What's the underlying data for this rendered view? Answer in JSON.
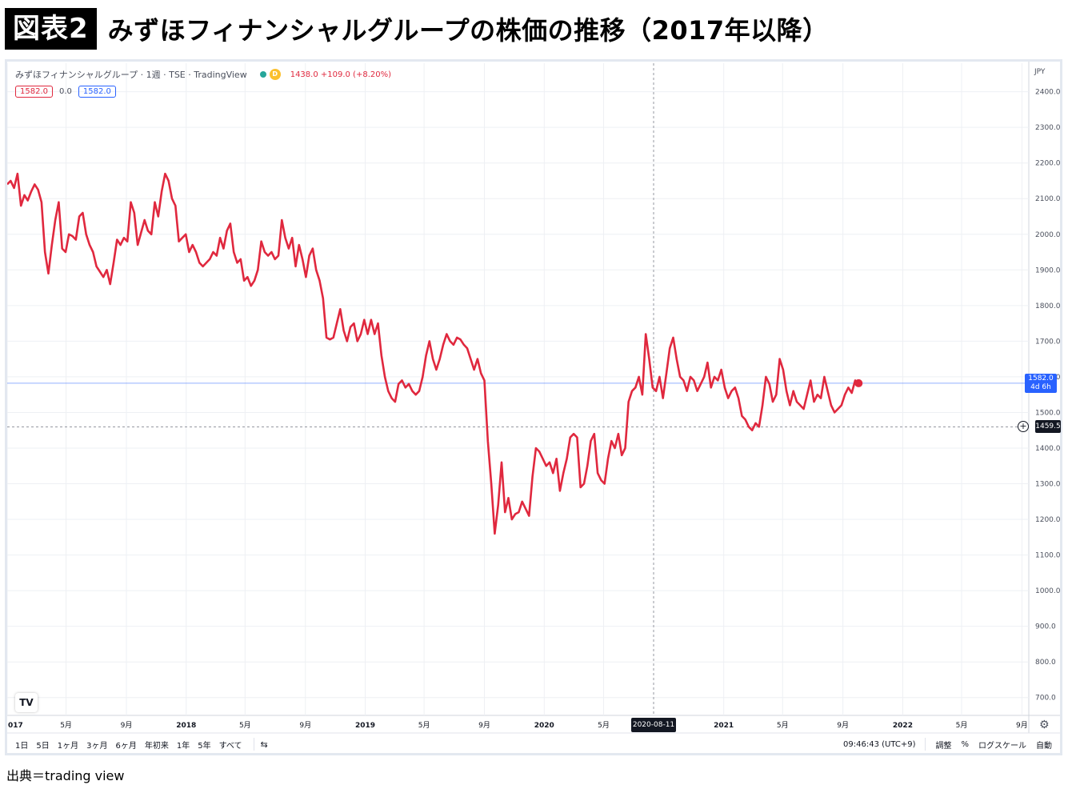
{
  "figure": {
    "badge": "図表2",
    "title": "みずほフィナンシャルグループの株価の推移（2017年以降）",
    "source": "出典＝trading view"
  },
  "legend": {
    "symbol": "みずほフィナンシャルグループ · 1週 · TSE · TradingView",
    "badge": "D",
    "change": "1438.0 +109.0 (+8.20%)"
  },
  "indicator": {
    "left": "1582.0",
    "mid": "0.0",
    "right": "1582.0"
  },
  "tags": {
    "last_price": "1582.0",
    "countdown": "4d 6h",
    "crosshair_price": "1459.5",
    "crosshair_date": "2020-08-11",
    "currency": "JPY"
  },
  "toolbar": {
    "timeframes": [
      "1日",
      "5日",
      "1ヶ月",
      "3ヶ月",
      "6ヶ月",
      "年初来",
      "1年",
      "5年",
      "すべて"
    ],
    "compare_icon": "⇆",
    "time": "09:46:43 (UTC+9)",
    "adjust": "調整",
    "percent": "%",
    "log_scale": "ログスケール",
    "auto": "自動",
    "logo": "TV",
    "settings_icon": "⚙"
  },
  "colors": {
    "line": "#e0283e",
    "price_tag": "#2962ff",
    "dark": "#131722",
    "grid": "#eef0f4"
  },
  "chart_data": {
    "type": "line",
    "title": "みずほフィナンシャルグループの株価の推移（2017年以降）",
    "xlabel": "",
    "ylabel": "",
    "unit": "JPY",
    "ylim": [
      650,
      2480
    ],
    "xlim": [
      "2017-01-01",
      "2022-09-15"
    ],
    "grid": true,
    "y_ticks": [
      700,
      800,
      900,
      1000,
      1100,
      1200,
      1300,
      1400,
      1500,
      1600,
      1700,
      1800,
      1900,
      2000,
      2100,
      2200,
      2300,
      2400
    ],
    "x_ticks": [
      {
        "date": "2017-01-01",
        "label": "017"
      },
      {
        "date": "2017-05-01",
        "label": "5月"
      },
      {
        "date": "2017-09-01",
        "label": "9月"
      },
      {
        "date": "2018-01-01",
        "label": "2018"
      },
      {
        "date": "2018-05-01",
        "label": "5月"
      },
      {
        "date": "2018-09-01",
        "label": "9月"
      },
      {
        "date": "2019-01-01",
        "label": "2019"
      },
      {
        "date": "2019-05-01",
        "label": "5月"
      },
      {
        "date": "2019-09-01",
        "label": "9月"
      },
      {
        "date": "2020-01-01",
        "label": "2020"
      },
      {
        "date": "2020-05-01",
        "label": "5月"
      },
      {
        "date": "2021-01-01",
        "label": "2021"
      },
      {
        "date": "2021-05-01",
        "label": "5月"
      },
      {
        "date": "2021-09-01",
        "label": "9月"
      },
      {
        "date": "2022-01-01",
        "label": "2022"
      },
      {
        "date": "2022-05-01",
        "label": "5月"
      },
      {
        "date": "2022-09-01",
        "label": "9月"
      }
    ],
    "crosshair": {
      "date": "2020-08-11",
      "price": 1459.5
    },
    "last_price": 1582.0,
    "series": [
      {
        "points": [
          [
            "2017-01-01",
            2140
          ],
          [
            "2017-01-08",
            2150
          ],
          [
            "2017-01-15",
            2130
          ],
          [
            "2017-01-22",
            2170
          ],
          [
            "2017-01-29",
            2080
          ],
          [
            "2017-02-05",
            2110
          ],
          [
            "2017-02-12",
            2095
          ],
          [
            "2017-02-19",
            2120
          ],
          [
            "2017-02-26",
            2140
          ],
          [
            "2017-03-05",
            2125
          ],
          [
            "2017-03-12",
            2090
          ],
          [
            "2017-03-19",
            1950
          ],
          [
            "2017-03-26",
            1890
          ],
          [
            "2017-04-02",
            1970
          ],
          [
            "2017-04-09",
            2040
          ],
          [
            "2017-04-16",
            2090
          ],
          [
            "2017-04-23",
            1960
          ],
          [
            "2017-04-30",
            1950
          ],
          [
            "2017-05-07",
            2000
          ],
          [
            "2017-05-14",
            1995
          ],
          [
            "2017-05-21",
            1985
          ],
          [
            "2017-05-28",
            2050
          ],
          [
            "2017-06-04",
            2060
          ],
          [
            "2017-06-11",
            2000
          ],
          [
            "2017-06-18",
            1970
          ],
          [
            "2017-06-25",
            1950
          ],
          [
            "2017-07-02",
            1910
          ],
          [
            "2017-07-09",
            1895
          ],
          [
            "2017-07-16",
            1880
          ],
          [
            "2017-07-23",
            1900
          ],
          [
            "2017-07-30",
            1860
          ],
          [
            "2017-08-06",
            1920
          ],
          [
            "2017-08-13",
            1985
          ],
          [
            "2017-08-20",
            1970
          ],
          [
            "2017-08-27",
            1990
          ],
          [
            "2017-09-03",
            1980
          ],
          [
            "2017-09-10",
            2090
          ],
          [
            "2017-09-17",
            2060
          ],
          [
            "2017-09-24",
            1970
          ],
          [
            "2017-10-01",
            2005
          ],
          [
            "2017-10-08",
            2040
          ],
          [
            "2017-10-15",
            2010
          ],
          [
            "2017-10-22",
            2000
          ],
          [
            "2017-10-29",
            2090
          ],
          [
            "2017-11-05",
            2050
          ],
          [
            "2017-11-12",
            2120
          ],
          [
            "2017-11-19",
            2170
          ],
          [
            "2017-11-26",
            2150
          ],
          [
            "2017-12-03",
            2100
          ],
          [
            "2017-12-10",
            2080
          ],
          [
            "2017-12-17",
            1980
          ],
          [
            "2017-12-24",
            1990
          ],
          [
            "2017-12-31",
            2000
          ],
          [
            "2018-01-07",
            1950
          ],
          [
            "2018-01-14",
            1970
          ],
          [
            "2018-01-21",
            1950
          ],
          [
            "2018-01-28",
            1920
          ],
          [
            "2018-02-04",
            1910
          ],
          [
            "2018-02-11",
            1920
          ],
          [
            "2018-02-18",
            1930
          ],
          [
            "2018-02-25",
            1950
          ],
          [
            "2018-03-04",
            1940
          ],
          [
            "2018-03-11",
            1990
          ],
          [
            "2018-03-18",
            1960
          ],
          [
            "2018-03-25",
            2010
          ],
          [
            "2018-04-01",
            2030
          ],
          [
            "2018-04-08",
            1950
          ],
          [
            "2018-04-15",
            1920
          ],
          [
            "2018-04-22",
            1930
          ],
          [
            "2018-04-29",
            1870
          ],
          [
            "2018-05-06",
            1880
          ],
          [
            "2018-05-13",
            1855
          ],
          [
            "2018-05-20",
            1870
          ],
          [
            "2018-05-27",
            1900
          ],
          [
            "2018-06-03",
            1980
          ],
          [
            "2018-06-10",
            1950
          ],
          [
            "2018-06-17",
            1940
          ],
          [
            "2018-06-24",
            1950
          ],
          [
            "2018-07-01",
            1930
          ],
          [
            "2018-07-08",
            1940
          ],
          [
            "2018-07-15",
            2040
          ],
          [
            "2018-07-22",
            1990
          ],
          [
            "2018-07-29",
            1960
          ],
          [
            "2018-08-05",
            1990
          ],
          [
            "2018-08-12",
            1910
          ],
          [
            "2018-08-19",
            1970
          ],
          [
            "2018-08-26",
            1930
          ],
          [
            "2018-09-02",
            1880
          ],
          [
            "2018-09-09",
            1940
          ],
          [
            "2018-09-16",
            1960
          ],
          [
            "2018-09-23",
            1900
          ],
          [
            "2018-09-30",
            1870
          ],
          [
            "2018-10-07",
            1820
          ],
          [
            "2018-10-14",
            1710
          ],
          [
            "2018-10-21",
            1705
          ],
          [
            "2018-10-28",
            1710
          ],
          [
            "2018-11-04",
            1750
          ],
          [
            "2018-11-11",
            1790
          ],
          [
            "2018-11-18",
            1730
          ],
          [
            "2018-11-25",
            1700
          ],
          [
            "2018-12-02",
            1740
          ],
          [
            "2018-12-09",
            1750
          ],
          [
            "2018-12-16",
            1700
          ],
          [
            "2018-12-23",
            1720
          ],
          [
            "2018-12-30",
            1760
          ],
          [
            "2019-01-06",
            1720
          ],
          [
            "2019-01-13",
            1760
          ],
          [
            "2019-01-20",
            1720
          ],
          [
            "2019-01-27",
            1750
          ],
          [
            "2019-02-03",
            1660
          ],
          [
            "2019-02-10",
            1600
          ],
          [
            "2019-02-17",
            1560
          ],
          [
            "2019-02-24",
            1540
          ],
          [
            "2019-03-03",
            1530
          ],
          [
            "2019-03-10",
            1580
          ],
          [
            "2019-03-17",
            1590
          ],
          [
            "2019-03-24",
            1570
          ],
          [
            "2019-03-31",
            1580
          ],
          [
            "2019-04-07",
            1560
          ],
          [
            "2019-04-14",
            1550
          ],
          [
            "2019-04-21",
            1560
          ],
          [
            "2019-04-28",
            1600
          ],
          [
            "2019-05-05",
            1660
          ],
          [
            "2019-05-12",
            1700
          ],
          [
            "2019-05-19",
            1650
          ],
          [
            "2019-05-26",
            1620
          ],
          [
            "2019-06-02",
            1650
          ],
          [
            "2019-06-09",
            1690
          ],
          [
            "2019-06-16",
            1720
          ],
          [
            "2019-06-23",
            1700
          ],
          [
            "2019-06-30",
            1690
          ],
          [
            "2019-07-07",
            1710
          ],
          [
            "2019-07-14",
            1705
          ],
          [
            "2019-07-21",
            1690
          ],
          [
            "2019-07-28",
            1680
          ],
          [
            "2019-08-04",
            1650
          ],
          [
            "2019-08-11",
            1620
          ],
          [
            "2019-08-18",
            1650
          ],
          [
            "2019-08-25",
            1610
          ],
          [
            "2019-09-01",
            1590
          ],
          [
            "2019-09-08",
            1420
          ],
          [
            "2019-09-15",
            1300
          ],
          [
            "2019-09-22",
            1160
          ],
          [
            "2019-09-29",
            1240
          ],
          [
            "2019-10-06",
            1360
          ],
          [
            "2019-10-13",
            1220
          ],
          [
            "2019-10-20",
            1260
          ],
          [
            "2019-10-27",
            1200
          ],
          [
            "2019-11-03",
            1215
          ],
          [
            "2019-11-10",
            1220
          ],
          [
            "2019-11-17",
            1250
          ],
          [
            "2019-11-24",
            1230
          ],
          [
            "2019-12-01",
            1210
          ],
          [
            "2019-12-08",
            1320
          ],
          [
            "2019-12-15",
            1400
          ],
          [
            "2019-12-22",
            1390
          ],
          [
            "2019-12-29",
            1370
          ],
          [
            "2020-01-05",
            1350
          ],
          [
            "2020-01-12",
            1360
          ],
          [
            "2020-01-19",
            1330
          ],
          [
            "2020-01-26",
            1370
          ],
          [
            "2020-02-02",
            1280
          ],
          [
            "2020-02-09",
            1330
          ],
          [
            "2020-02-16",
            1370
          ],
          [
            "2020-02-23",
            1430
          ],
          [
            "2020-03-01",
            1440
          ],
          [
            "2020-03-08",
            1430
          ],
          [
            "2020-03-15",
            1290
          ],
          [
            "2020-03-22",
            1300
          ],
          [
            "2020-03-29",
            1350
          ],
          [
            "2020-04-05",
            1420
          ],
          [
            "2020-04-12",
            1440
          ],
          [
            "2020-04-19",
            1330
          ],
          [
            "2020-04-26",
            1310
          ],
          [
            "2020-05-03",
            1300
          ],
          [
            "2020-05-10",
            1370
          ],
          [
            "2020-05-17",
            1420
          ],
          [
            "2020-05-24",
            1400
          ],
          [
            "2020-05-31",
            1440
          ],
          [
            "2020-06-07",
            1380
          ],
          [
            "2020-06-14",
            1400
          ],
          [
            "2020-06-21",
            1530
          ],
          [
            "2020-06-28",
            1560
          ],
          [
            "2020-07-05",
            1570
          ],
          [
            "2020-07-12",
            1600
          ],
          [
            "2020-07-19",
            1550
          ],
          [
            "2020-07-26",
            1720
          ],
          [
            "2020-08-02",
            1650
          ],
          [
            "2020-08-09",
            1570
          ],
          [
            "2020-08-16",
            1560
          ],
          [
            "2020-08-23",
            1600
          ],
          [
            "2020-08-30",
            1540
          ],
          [
            "2020-09-06",
            1610
          ],
          [
            "2020-09-13",
            1680
          ],
          [
            "2020-09-20",
            1710
          ],
          [
            "2020-09-27",
            1650
          ],
          [
            "2020-10-04",
            1600
          ],
          [
            "2020-10-11",
            1590
          ],
          [
            "2020-10-18",
            1560
          ],
          [
            "2020-10-25",
            1600
          ],
          [
            "2020-11-01",
            1590
          ],
          [
            "2020-11-08",
            1560
          ],
          [
            "2020-11-15",
            1580
          ],
          [
            "2020-11-22",
            1600
          ],
          [
            "2020-11-29",
            1640
          ],
          [
            "2020-12-06",
            1570
          ],
          [
            "2020-12-13",
            1600
          ],
          [
            "2020-12-20",
            1590
          ],
          [
            "2020-12-27",
            1620
          ],
          [
            "2021-01-03",
            1570
          ],
          [
            "2021-01-10",
            1540
          ],
          [
            "2021-01-17",
            1560
          ],
          [
            "2021-01-24",
            1570
          ],
          [
            "2021-01-31",
            1540
          ],
          [
            "2021-02-07",
            1490
          ],
          [
            "2021-02-14",
            1480
          ],
          [
            "2021-02-21",
            1460
          ],
          [
            "2021-02-28",
            1450
          ],
          [
            "2021-03-07",
            1470
          ],
          [
            "2021-03-14",
            1460
          ],
          [
            "2021-03-21",
            1520
          ],
          [
            "2021-03-28",
            1600
          ],
          [
            "2021-04-04",
            1580
          ],
          [
            "2021-04-11",
            1530
          ],
          [
            "2021-04-18",
            1550
          ],
          [
            "2021-04-25",
            1650
          ],
          [
            "2021-05-02",
            1620
          ],
          [
            "2021-05-09",
            1560
          ],
          [
            "2021-05-16",
            1520
          ],
          [
            "2021-05-23",
            1560
          ],
          [
            "2021-05-30",
            1530
          ],
          [
            "2021-06-06",
            1520
          ],
          [
            "2021-06-13",
            1510
          ],
          [
            "2021-06-20",
            1550
          ],
          [
            "2021-06-27",
            1590
          ],
          [
            "2021-07-04",
            1530
          ],
          [
            "2021-07-11",
            1550
          ],
          [
            "2021-07-18",
            1540
          ],
          [
            "2021-07-25",
            1600
          ],
          [
            "2021-08-01",
            1560
          ],
          [
            "2021-08-08",
            1520
          ],
          [
            "2021-08-15",
            1500
          ],
          [
            "2021-08-22",
            1510
          ],
          [
            "2021-08-29",
            1520
          ],
          [
            "2021-09-05",
            1550
          ],
          [
            "2021-09-12",
            1570
          ],
          [
            "2021-09-19",
            1555
          ],
          [
            "2021-09-26",
            1590
          ],
          [
            "2021-10-03",
            1582
          ]
        ]
      }
    ]
  }
}
